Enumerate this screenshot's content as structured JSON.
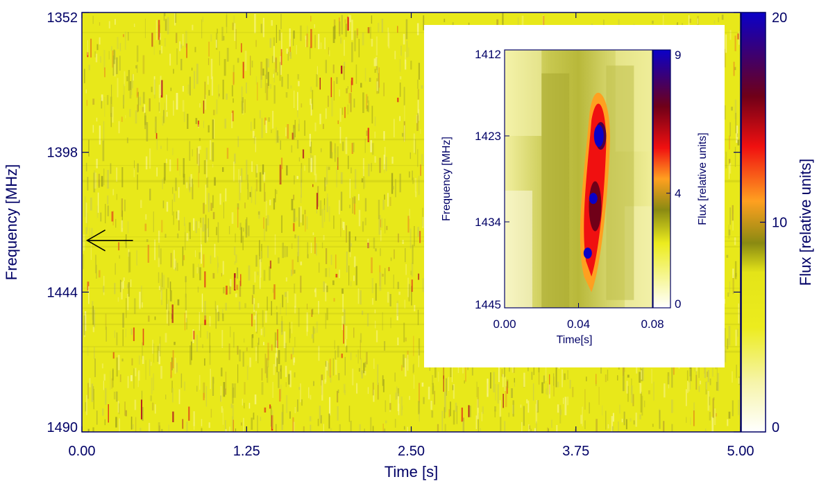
{
  "chart_data": [
    {
      "type": "heatmap",
      "xlabel": "Time [s]",
      "ylabel": "Frequency [MHz]",
      "colorbar_label": "Flux [relative units]",
      "xlim": [
        0.0,
        5.0
      ],
      "ylim": [
        1352,
        1490
      ],
      "y_inverted": true,
      "x_ticks": [
        "0.00",
        "1.25",
        "2.50",
        "3.75",
        "5.00"
      ],
      "y_ticks": [
        "1352",
        "1398",
        "1444",
        "1490"
      ],
      "colorbar_range": [
        0,
        20
      ],
      "colorbar_ticks": [
        "0",
        "10",
        "20"
      ],
      "colormap": [
        "#ffffff",
        "#f4f08a",
        "#ecec1e",
        "#8a8a10",
        "#ffa020",
        "#f01010",
        "#700018",
        "#0a00c8"
      ],
      "background_color": "#e8e81a",
      "annotation": "arrow marking the burst at t = 0.0 s, near 1427 MHz",
      "arrow_color": "#000000"
    },
    {
      "type": "heatmap",
      "position": "inset, top-right",
      "xlabel": "Time[s]",
      "ylabel": "Frequency [MHz]",
      "colorbar_label": "Flux [relative units]",
      "xlim": [
        0.0,
        0.08
      ],
      "ylim": [
        1412,
        1445
      ],
      "y_inverted": true,
      "x_ticks": [
        "0.00",
        "0.04",
        "0.08"
      ],
      "y_ticks": [
        "1412",
        "1423",
        "1434",
        "1445"
      ],
      "colorbar_range": [
        0,
        9
      ],
      "colorbar_ticks": [
        "0",
        "4",
        "9"
      ],
      "peak_flux_points": [
        {
          "time": 0.051,
          "freq": 1423,
          "flux": 9
        },
        {
          "time": 0.048,
          "freq": 1431,
          "flux": 8
        },
        {
          "time": 0.045,
          "freq": 1438,
          "flux": 9
        }
      ]
    }
  ]
}
